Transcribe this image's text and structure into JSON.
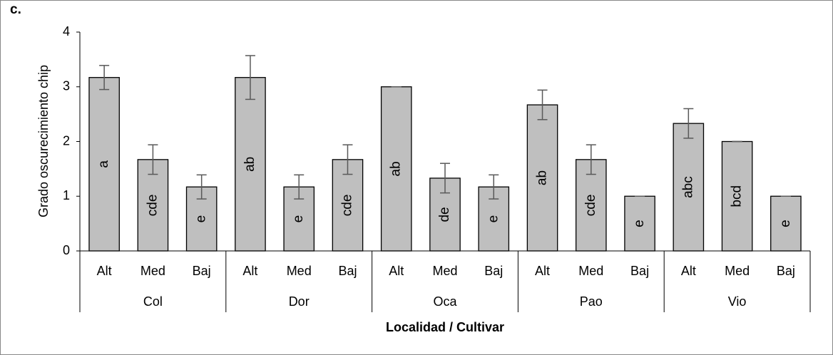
{
  "chart_data": {
    "type": "bar",
    "panel_label": "c.",
    "y_label": "Grado oscurecimiento chip",
    "x_label": "Localidad / Cultivar",
    "groups": [
      {
        "name": "Col",
        "categories": [
          "Alt",
          "Med",
          "Baj"
        ]
      },
      {
        "name": "Dor",
        "categories": [
          "Alt",
          "Med",
          "Baj"
        ]
      },
      {
        "name": "Oca",
        "categories": [
          "Alt",
          "Med",
          "Baj"
        ]
      },
      {
        "name": "Pao",
        "categories": [
          "Alt",
          "Med",
          "Baj"
        ]
      },
      {
        "name": "Vio",
        "categories": [
          "Alt",
          "Med",
          "Baj"
        ]
      }
    ],
    "values": [
      3.17,
      1.67,
      1.17,
      3.17,
      1.17,
      1.67,
      3.0,
      1.33,
      1.17,
      2.67,
      1.67,
      1.0,
      2.33,
      2.0,
      1.0
    ],
    "errors": [
      0.22,
      0.27,
      0.22,
      0.4,
      0.22,
      0.27,
      0,
      0.27,
      0.22,
      0.27,
      0.27,
      0,
      0.27,
      0,
      0
    ],
    "annotations": [
      "a",
      "cde",
      "e",
      "ab",
      "e",
      "cde",
      "ab",
      "de",
      "e",
      "ab",
      "cde",
      "e",
      "abc",
      "bcd",
      "e"
    ],
    "color": "#bfbfbf",
    "error_color": "#595959",
    "ylim": [
      0,
      4
    ],
    "yticks": [
      0,
      1,
      2,
      3,
      4
    ]
  }
}
